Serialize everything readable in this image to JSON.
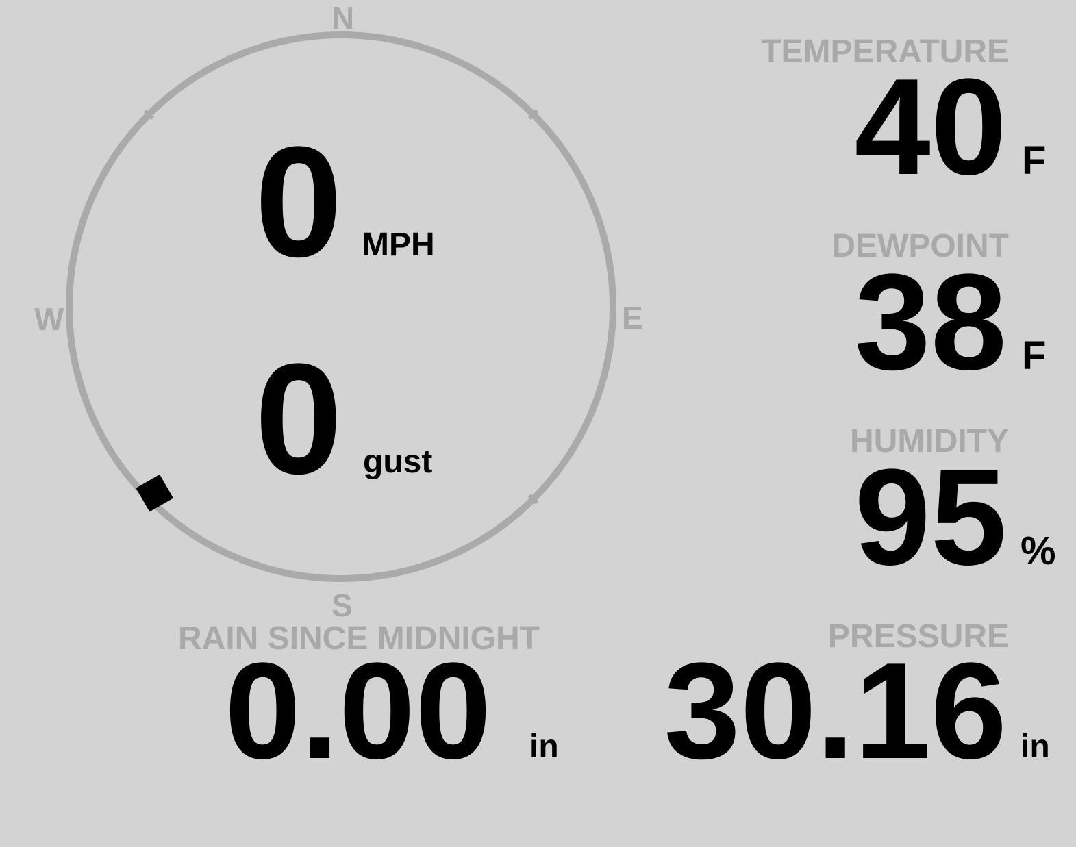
{
  "compass": {
    "north": "N",
    "east": "E",
    "south": "S",
    "west": "W",
    "direction_degrees": 225,
    "ring_color": "#aaaaaa"
  },
  "wind": {
    "speed": "0",
    "speed_unit": "MPH",
    "gust": "0",
    "gust_unit": "gust"
  },
  "temperature": {
    "label": "TEMPERATURE",
    "value": "40",
    "unit": "F"
  },
  "dewpoint": {
    "label": "DEWPOINT",
    "value": "38",
    "unit": "F"
  },
  "humidity": {
    "label": "HUMIDITY",
    "value": "95",
    "unit": "%"
  },
  "pressure": {
    "label": "PRESSURE",
    "value": "30.16",
    "unit": "in"
  },
  "rain": {
    "label": "RAIN SINCE MIDNIGHT",
    "value": "0.00",
    "unit": "in"
  },
  "colors": {
    "background": "#d3d3d3",
    "label": "#a9a9a9",
    "value": "#000000"
  }
}
